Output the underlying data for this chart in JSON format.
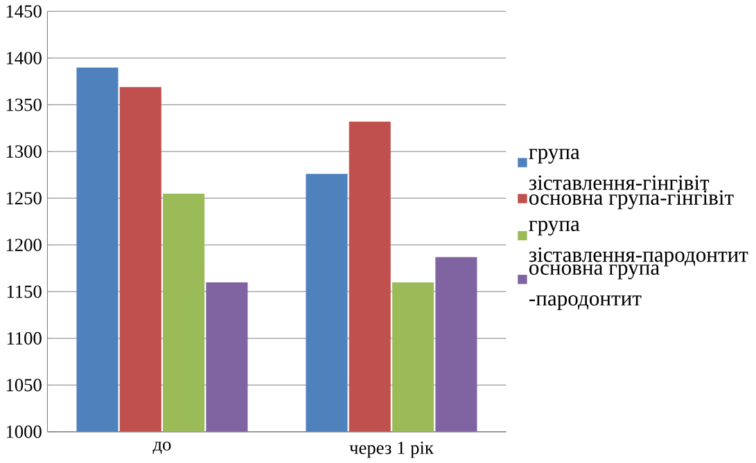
{
  "chart_data": {
    "type": "bar",
    "categories": [
      "до",
      "через 1 рік"
    ],
    "series": [
      {
        "name": "група зіставлення-гінгівіт",
        "color": "#4f81bd",
        "values": [
          1390,
          1276
        ]
      },
      {
        "name": "основна група-гінгівіт",
        "color": "#c0504d",
        "values": [
          1369,
          1332
        ]
      },
      {
        "name": "група зіставлення-пародонтит",
        "color": "#9bbb59",
        "values": [
          1255,
          1160
        ]
      },
      {
        "name": "основна група -пародонтит",
        "color": "#8064a2",
        "values": [
          1160,
          1187
        ]
      }
    ],
    "ylim": [
      1000,
      1450
    ],
    "yticks": [
      1000,
      1050,
      1100,
      1150,
      1200,
      1250,
      1300,
      1350,
      1400,
      1450
    ],
    "grid": "y",
    "legend": "right"
  }
}
